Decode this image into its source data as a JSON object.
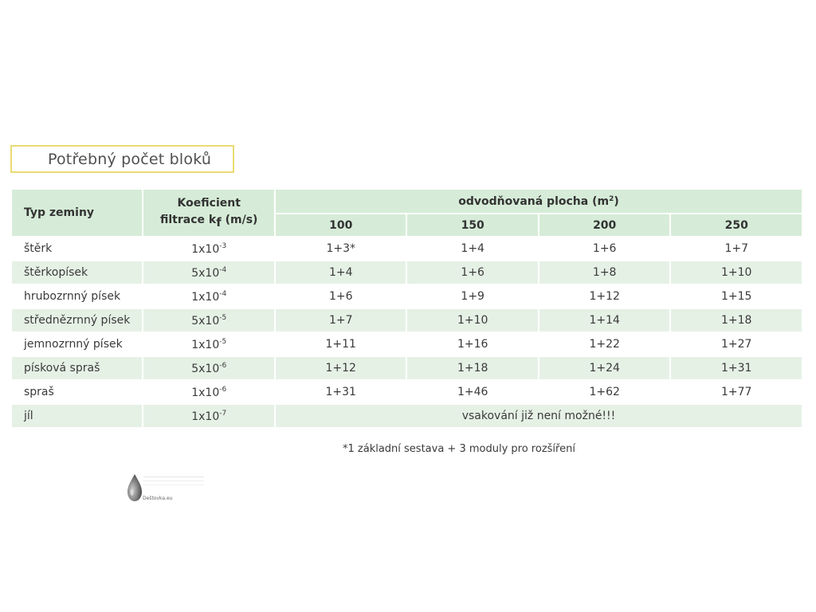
{
  "title": "Potřebný počet bloků",
  "table": {
    "headers": {
      "soil_type": "Typ zeminy",
      "kf_line1": "Koeficient",
      "kf_line2": "filtrace k",
      "kf_sub": "f",
      "kf_unit": "(m/s)",
      "area_label": "odvodňovaná plocha (m",
      "area_sup": "2",
      "area_close": ")",
      "area_cols": [
        "100",
        "150",
        "200",
        "250"
      ]
    },
    "rows": [
      {
        "soil": "štěrk",
        "kf_base": "1x10",
        "kf_exp": "-3",
        "values": [
          "1+3*",
          "1+4",
          "1+6",
          "1+7"
        ]
      },
      {
        "soil": "štěrkopísek",
        "kf_base": "5x10",
        "kf_exp": "-4",
        "values": [
          "1+4",
          "1+6",
          "1+8",
          "1+10"
        ]
      },
      {
        "soil": "hrubozrnný písek",
        "kf_base": "1x10",
        "kf_exp": "-4",
        "values": [
          "1+6",
          "1+9",
          "1+12",
          "1+15"
        ]
      },
      {
        "soil": "střednězrnný písek",
        "kf_base": "5x10",
        "kf_exp": "-5",
        "values": [
          "1+7",
          "1+10",
          "1+14",
          "1+18"
        ]
      },
      {
        "soil": "jemnozrnný písek",
        "kf_base": "1x10",
        "kf_exp": "-5",
        "values": [
          "1+11",
          "1+16",
          "1+22",
          "1+27"
        ]
      },
      {
        "soil": "písková spraš",
        "kf_base": "5x10",
        "kf_exp": "-6",
        "values": [
          "1+12",
          "1+18",
          "1+24",
          "1+31"
        ]
      },
      {
        "soil": "spraš",
        "kf_base": "1x10",
        "kf_exp": "-6",
        "values": [
          "1+31",
          "1+46",
          "1+62",
          "1+77"
        ]
      },
      {
        "soil": "jíl",
        "kf_base": "1x10",
        "kf_exp": "-7",
        "merged_text": "vsakování již není možné!!!"
      }
    ]
  },
  "footnote": "*1 základní sestava + 3 moduly pro rozšíření",
  "logo": {
    "text": "Deštovka.eu",
    "icon": "water-drop-icon"
  },
  "colors": {
    "header_bg": "#d6ecd8",
    "row_alt_bg": "#e6f1e6",
    "title_border": "#eadb72"
  }
}
